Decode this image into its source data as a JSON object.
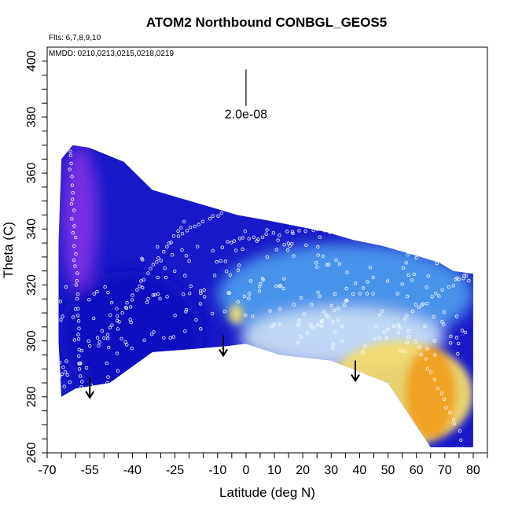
{
  "chart_data": {
    "type": "heatmap",
    "title": "ATOM2 Northbound CONBGL_GEOS5",
    "annotations": {
      "flights": "Flts: 6,7,8,9,10",
      "dates": "MMDD: 0210,0213,0215,0218,0219",
      "scale": "2.0e-08"
    },
    "xlabel": "Latitude (deg N)",
    "ylabel": "Theta (C)",
    "xlim": [
      -70,
      85
    ],
    "ylim": [
      260,
      405
    ],
    "x_ticks": [
      "-70",
      "-55",
      "-40",
      "-25",
      "-10",
      "0",
      "10",
      "20",
      "30",
      "40",
      "50",
      "60",
      "70",
      "80"
    ],
    "y_ticks": [
      "260",
      "280",
      "300",
      "320",
      "340",
      "360",
      "380",
      "400"
    ],
    "colors": {
      "purple": "#7a2ee6",
      "dark_blue": "#1010c0",
      "blue": "#2d4be8",
      "light_blue": "#4fa8f0",
      "pale_blue": "#c8dcf4",
      "yellow": "#f2dc6e",
      "orange": "#f0a020"
    },
    "field_outline": [
      [
        -65,
        280
      ],
      [
        -60,
        283
      ],
      [
        -48,
        285
      ],
      [
        -33,
        296
      ],
      [
        -8,
        298
      ],
      [
        0,
        299
      ],
      [
        12,
        295
      ],
      [
        30,
        293
      ],
      [
        50,
        285
      ],
      [
        65,
        262
      ],
      [
        80,
        262
      ],
      [
        80,
        324
      ],
      [
        73,
        325
      ],
      [
        68,
        328
      ],
      [
        58,
        331
      ],
      [
        48,
        334
      ],
      [
        38,
        336
      ],
      [
        28,
        339
      ],
      [
        18,
        341
      ],
      [
        8,
        343
      ],
      [
        -3,
        345
      ],
      [
        -13,
        348
      ],
      [
        -23,
        351
      ],
      [
        -33,
        354
      ],
      [
        -43,
        364
      ],
      [
        -55,
        369
      ],
      [
        -61,
        370
      ],
      [
        -65,
        365
      ],
      [
        -66,
        335
      ],
      [
        -66,
        300
      ]
    ],
    "features": [
      {
        "name": "purple high-latitude column",
        "lat": [
          -65,
          -52
        ],
        "theta": [
          318,
          370
        ],
        "color": "#7a2ee6"
      },
      {
        "name": "dark-blue low-level band",
        "lat": [
          -66,
          -15
        ],
        "theta": [
          280,
          325
        ],
        "color": "#1010c0"
      },
      {
        "name": "light-blue mid-level region",
        "lat": [
          -10,
          80
        ],
        "theta": [
          298,
          335
        ],
        "color": "#4fa8f0"
      },
      {
        "name": "pale tongue",
        "lat": [
          -2,
          70
        ],
        "theta": [
          290,
          312
        ],
        "color": "#c8dcf4"
      },
      {
        "name": "yellow blob",
        "lat": [
          -6,
          -1
        ],
        "theta": [
          306,
          313
        ],
        "color": "#f2dc6e"
      },
      {
        "name": "yellow low-level region",
        "lat": [
          28,
          80
        ],
        "theta": [
          262,
          300
        ],
        "color": "#f2dc6e"
      },
      {
        "name": "orange core",
        "lat": [
          56,
          74
        ],
        "theta": [
          265,
          298
        ],
        "color": "#f0a020"
      }
    ],
    "arrows": [
      {
        "lat": -55,
        "theta_from": 287,
        "theta_to": 280
      },
      {
        "lat": -8,
        "theta_from": 302,
        "theta_to": 295
      },
      {
        "lat": 38.5,
        "theta_from": 293,
        "theta_to": 286
      }
    ],
    "scale_bar": {
      "lat": 0,
      "theta_from": 384,
      "theta_to": 397
    },
    "samples": {
      "tracks": [
        {
          "lat": [
            -62,
            -58
          ],
          "theta": [
            368,
            283
          ],
          "count": 36
        },
        {
          "lat": [
            -52,
            -22
          ],
          "theta": [
            298,
            342
          ],
          "count": 30
        },
        {
          "lat": [
            -24,
            -4
          ],
          "theta": [
            338,
            348
          ],
          "count": 14
        },
        {
          "lat": [
            -6,
            28
          ],
          "theta": [
            336,
            340
          ],
          "count": 16
        },
        {
          "lat": [
            18,
            45
          ],
          "theta": [
            300,
            322
          ],
          "count": 16
        },
        {
          "lat": [
            45,
            78
          ],
          "theta": [
            300,
            324
          ],
          "count": 20
        },
        {
          "lat": [
            60,
            76
          ],
          "theta": [
            300,
            265
          ],
          "count": 16
        }
      ],
      "scattered": [
        {
          "lat": [
            -66,
            -40
          ],
          "theta": [
            282,
            320
          ],
          "count": 55
        },
        {
          "lat": [
            -40,
            -15
          ],
          "theta": [
            300,
            335
          ],
          "count": 40
        },
        {
          "lat": [
            -15,
            30
          ],
          "theta": [
            305,
            340
          ],
          "count": 80
        },
        {
          "lat": [
            30,
            80
          ],
          "theta": [
            295,
            332
          ],
          "count": 70
        }
      ]
    }
  }
}
